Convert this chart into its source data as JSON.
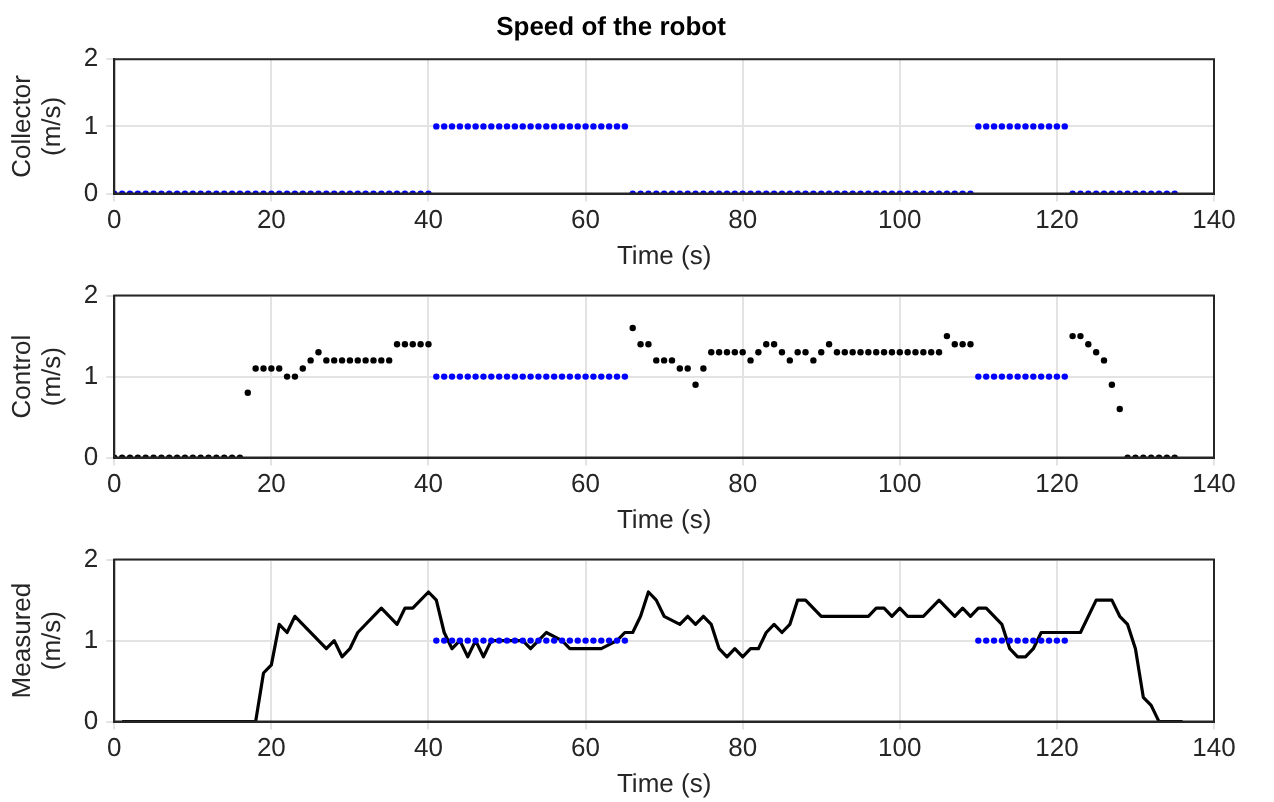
{
  "chart_data": [
    {
      "type": "scatter",
      "title": "Speed of the robot",
      "xlabel": "Time (s)",
      "ylabel": "Collector\n(m/s)",
      "xlim": [
        0,
        140
      ],
      "xticks": [
        0,
        20,
        40,
        60,
        80,
        100,
        120,
        140
      ],
      "ylim": [
        0,
        2
      ],
      "yticks": [
        0,
        1,
        2
      ],
      "grid": true,
      "marker": "circle",
      "x": [
        0,
        1,
        2,
        3,
        4,
        5,
        6,
        7,
        8,
        9,
        10,
        11,
        12,
        13,
        14,
        15,
        16,
        17,
        18,
        19,
        20,
        21,
        22,
        23,
        24,
        25,
        26,
        27,
        28,
        29,
        30,
        31,
        32,
        33,
        34,
        35,
        36,
        37,
        38,
        39,
        40,
        41,
        42,
        43,
        44,
        45,
        46,
        47,
        48,
        49,
        50,
        51,
        52,
        53,
        54,
        55,
        56,
        57,
        58,
        59,
        60,
        61,
        62,
        63,
        64,
        65,
        66,
        67,
        68,
        69,
        70,
        71,
        72,
        73,
        74,
        75,
        76,
        77,
        78,
        79,
        80,
        81,
        82,
        83,
        84,
        85,
        86,
        87,
        88,
        89,
        90,
        91,
        92,
        93,
        94,
        95,
        96,
        97,
        98,
        99,
        100,
        101,
        102,
        103,
        104,
        105,
        106,
        107,
        108,
        109,
        110,
        111,
        112,
        113,
        114,
        115,
        116,
        117,
        118,
        119,
        120,
        121,
        122,
        123,
        124,
        125,
        126,
        127,
        128,
        129,
        130,
        131,
        132,
        133,
        134,
        135
      ],
      "series": [
        {
          "color": "#0000ff",
          "values": [
            0,
            0,
            0,
            0,
            0,
            0,
            0,
            0,
            0,
            0,
            0,
            0,
            0,
            0,
            0,
            0,
            0,
            0,
            0,
            0,
            0,
            0,
            0,
            0,
            0,
            0,
            0,
            0,
            0,
            0,
            0,
            0,
            0,
            0,
            0,
            0,
            0,
            0,
            0,
            0,
            0,
            1,
            1,
            1,
            1,
            1,
            1,
            1,
            1,
            1,
            1,
            1,
            1,
            1,
            1,
            1,
            1,
            1,
            1,
            1,
            1,
            1,
            1,
            1,
            1,
            1,
            0,
            0,
            0,
            0,
            0,
            0,
            0,
            0,
            0,
            0,
            0,
            0,
            0,
            0,
            0,
            0,
            0,
            0,
            0,
            0,
            0,
            0,
            0,
            0,
            0,
            0,
            0,
            0,
            0,
            0,
            0,
            0,
            0,
            0,
            0,
            0,
            0,
            0,
            0,
            0,
            0,
            0,
            0,
            0,
            1,
            1,
            1,
            1,
            1,
            1,
            1,
            1,
            1,
            1,
            1,
            1,
            0,
            0,
            0,
            0,
            0,
            0,
            0,
            0,
            0,
            0,
            0,
            0,
            0,
            0
          ]
        }
      ]
    },
    {
      "type": "scatter",
      "xlabel": "Time (s)",
      "ylabel": "Control\n(m/s)",
      "xlim": [
        0,
        140
      ],
      "xticks": [
        0,
        20,
        40,
        60,
        80,
        100,
        120,
        140
      ],
      "ylim": [
        0,
        2
      ],
      "yticks": [
        0,
        1,
        2
      ],
      "grid": true,
      "marker": "circle",
      "x": [
        0,
        1,
        2,
        3,
        4,
        5,
        6,
        7,
        8,
        9,
        10,
        11,
        12,
        13,
        14,
        15,
        16,
        17,
        18,
        19,
        20,
        21,
        22,
        23,
        24,
        25,
        26,
        27,
        28,
        29,
        30,
        31,
        32,
        33,
        34,
        35,
        36,
        37,
        38,
        39,
        40,
        41,
        42,
        43,
        44,
        45,
        46,
        47,
        48,
        49,
        50,
        51,
        52,
        53,
        54,
        55,
        56,
        57,
        58,
        59,
        60,
        61,
        62,
        63,
        64,
        65,
        66,
        67,
        68,
        69,
        70,
        71,
        72,
        73,
        74,
        75,
        76,
        77,
        78,
        79,
        80,
        81,
        82,
        83,
        84,
        85,
        86,
        87,
        88,
        89,
        90,
        91,
        92,
        93,
        94,
        95,
        96,
        97,
        98,
        99,
        100,
        101,
        102,
        103,
        104,
        105,
        106,
        107,
        108,
        109,
        110,
        111,
        112,
        113,
        114,
        115,
        116,
        117,
        118,
        119,
        120,
        121,
        122,
        123,
        124,
        125,
        126,
        127,
        128,
        129,
        130,
        131,
        132,
        133,
        134,
        135
      ],
      "series": [
        {
          "color": "#000000",
          "values": [
            0,
            0,
            0,
            0,
            0,
            0,
            0,
            0,
            0,
            0,
            0,
            0,
            0,
            0,
            0,
            0,
            0,
            0.8,
            1.1,
            1.1,
            1.1,
            1.1,
            1.0,
            1.0,
            1.1,
            1.2,
            1.3,
            1.2,
            1.2,
            1.2,
            1.2,
            1.2,
            1.2,
            1.2,
            1.2,
            1.2,
            1.4,
            1.4,
            1.4,
            1.4,
            1.4,
            null,
            null,
            null,
            null,
            null,
            null,
            null,
            null,
            null,
            null,
            null,
            null,
            null,
            null,
            null,
            null,
            null,
            null,
            null,
            null,
            null,
            null,
            null,
            null,
            null,
            1.6,
            1.4,
            1.4,
            1.2,
            1.2,
            1.2,
            1.1,
            1.1,
            0.9,
            1.1,
            1.3,
            1.3,
            1.3,
            1.3,
            1.3,
            1.2,
            1.3,
            1.4,
            1.4,
            1.3,
            1.2,
            1.3,
            1.3,
            1.2,
            1.3,
            1.4,
            1.3,
            1.3,
            1.3,
            1.3,
            1.3,
            1.3,
            1.3,
            1.3,
            1.3,
            1.3,
            1.3,
            1.3,
            1.3,
            1.3,
            1.5,
            1.4,
            1.4,
            1.4,
            null,
            null,
            null,
            null,
            null,
            null,
            null,
            null,
            null,
            null,
            null,
            null,
            1.5,
            1.5,
            1.4,
            1.3,
            1.2,
            0.9,
            0.6,
            0,
            0,
            0,
            0,
            0,
            0,
            0
          ]
        },
        {
          "color": "#0000ff",
          "values": [
            null,
            null,
            null,
            null,
            null,
            null,
            null,
            null,
            null,
            null,
            null,
            null,
            null,
            null,
            null,
            null,
            null,
            null,
            null,
            null,
            null,
            null,
            null,
            null,
            null,
            null,
            null,
            null,
            null,
            null,
            null,
            null,
            null,
            null,
            null,
            null,
            null,
            null,
            null,
            null,
            null,
            1,
            1,
            1,
            1,
            1,
            1,
            1,
            1,
            1,
            1,
            1,
            1,
            1,
            1,
            1,
            1,
            1,
            1,
            1,
            1,
            1,
            1,
            1,
            1,
            1,
            null,
            null,
            null,
            null,
            null,
            null,
            null,
            null,
            null,
            null,
            null,
            null,
            null,
            null,
            null,
            null,
            null,
            null,
            null,
            null,
            null,
            null,
            null,
            null,
            null,
            null,
            null,
            null,
            null,
            null,
            null,
            null,
            null,
            null,
            null,
            null,
            null,
            null,
            null,
            null,
            null,
            null,
            null,
            null,
            1,
            1,
            1,
            1,
            1,
            1,
            1,
            1,
            1,
            1,
            1,
            1,
            null,
            null,
            null,
            null,
            null,
            null,
            null,
            null,
            null,
            null,
            null,
            null,
            null,
            null
          ]
        }
      ]
    },
    {
      "type": "line",
      "xlabel": "Time (s)",
      "ylabel": "Measured\n(m/s)",
      "xlim": [
        0,
        140
      ],
      "xticks": [
        0,
        20,
        40,
        60,
        80,
        100,
        120,
        140
      ],
      "ylim": [
        0,
        2
      ],
      "yticks": [
        0,
        1,
        2
      ],
      "grid": true,
      "series": [
        {
          "marker": "none",
          "color": "#000000",
          "x": [
            1,
            18,
            19,
            20,
            21,
            22,
            23,
            27,
            28,
            29,
            30,
            31,
            34,
            36,
            37,
            38,
            40,
            41,
            42,
            43,
            44,
            45,
            46,
            47,
            48,
            52,
            53,
            54,
            55,
            57,
            58,
            62,
            64,
            65,
            66,
            67,
            68,
            69,
            70,
            72,
            73,
            74,
            75,
            76,
            77,
            78,
            79,
            80,
            81,
            82,
            83,
            84,
            85,
            86,
            87,
            88,
            90,
            96,
            97,
            98,
            99,
            100,
            101,
            103,
            105,
            107,
            108,
            109,
            110,
            111,
            113,
            114,
            115,
            116,
            117,
            118,
            123,
            125,
            127,
            128,
            129,
            130,
            131,
            132,
            133,
            136
          ],
          "values": [
            0,
            0,
            0.6,
            0.7,
            1.2,
            1.1,
            1.3,
            0.9,
            1.0,
            0.8,
            0.9,
            1.1,
            1.4,
            1.2,
            1.4,
            1.4,
            1.6,
            1.5,
            1.1,
            0.9,
            1.0,
            0.8,
            1.0,
            0.8,
            1.0,
            1.0,
            0.9,
            1.0,
            1.1,
            1.0,
            0.9,
            0.9,
            1.0,
            1.1,
            1.1,
            1.3,
            1.6,
            1.5,
            1.3,
            1.2,
            1.3,
            1.2,
            1.3,
            1.2,
            0.9,
            0.8,
            0.9,
            0.8,
            0.9,
            0.9,
            1.1,
            1.2,
            1.1,
            1.2,
            1.5,
            1.5,
            1.3,
            1.3,
            1.4,
            1.4,
            1.3,
            1.4,
            1.3,
            1.3,
            1.5,
            1.3,
            1.4,
            1.3,
            1.4,
            1.4,
            1.2,
            0.9,
            0.8,
            0.8,
            0.9,
            1.1,
            1.1,
            1.5,
            1.5,
            1.3,
            1.2,
            0.9,
            0.3,
            0.2,
            0,
            0
          ]
        },
        {
          "type": "scatter",
          "marker": "circle",
          "color": "#0000ff",
          "x": [
            41,
            42,
            43,
            44,
            45,
            46,
            47,
            48,
            49,
            50,
            51,
            52,
            53,
            54,
            55,
            56,
            57,
            58,
            59,
            60,
            61,
            62,
            63,
            64,
            65,
            110,
            111,
            112,
            113,
            114,
            115,
            116,
            117,
            118,
            119,
            120,
            121
          ],
          "values": [
            1,
            1,
            1,
            1,
            1,
            1,
            1,
            1,
            1,
            1,
            1,
            1,
            1,
            1,
            1,
            1,
            1,
            1,
            1,
            1,
            1,
            1,
            1,
            1,
            1,
            1,
            1,
            1,
            1,
            1,
            1,
            1,
            1,
            1,
            1,
            1,
            1
          ]
        }
      ]
    }
  ]
}
